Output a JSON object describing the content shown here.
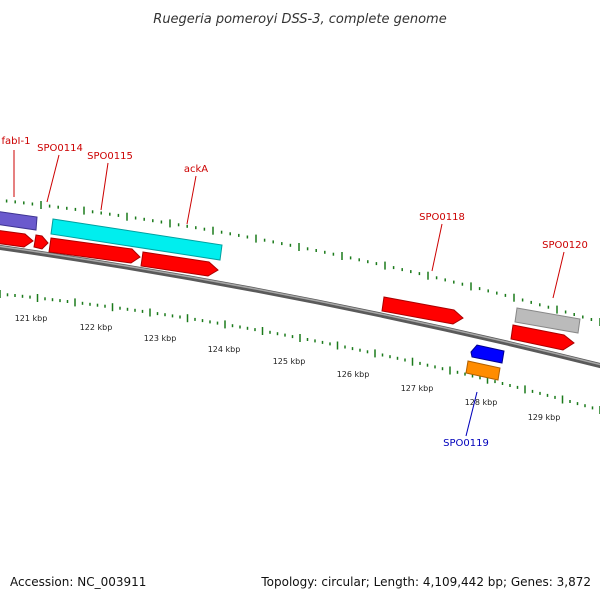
{
  "title": "Ruegeria pomeroyi DSS-3, complete genome",
  "footer": {
    "accession": "Accession: NC_003911",
    "summary": "Topology: circular; Length: 4,109,442 bp; Genes: 3,872"
  },
  "colors": {
    "backbone": "#808080",
    "tick": "#1a7a1a",
    "label_fwd": "#cc0000",
    "label_rev": "#0000bb",
    "fwd_gene": "#ff0000",
    "fabI": "#6a5acd",
    "cyan_block": "#00eeee",
    "grey_block": "#bbbbbb",
    "rev_blue": "#0000ff",
    "rev_orange": "#ff8c00"
  },
  "scale_labels": [
    "121 kbp",
    "122 kbp",
    "123 kbp",
    "124 kbp",
    "125 kbp",
    "126 kbp",
    "127 kbp",
    "128 kbp",
    "129 kbp"
  ],
  "gene_labels": [
    {
      "id": "fabI-1",
      "text": "fabI-1",
      "strand": "forward"
    },
    {
      "id": "SPO0114",
      "text": "SPO0114",
      "strand": "forward"
    },
    {
      "id": "SPO0115",
      "text": "SPO0115",
      "strand": "forward"
    },
    {
      "id": "ackA",
      "text": "ackA",
      "strand": "forward"
    },
    {
      "id": "SPO0118",
      "text": "SPO0118",
      "strand": "forward"
    },
    {
      "id": "SPO0120",
      "text": "SPO0120",
      "strand": "forward"
    },
    {
      "id": "SPO0119",
      "text": "SPO0119",
      "strand": "reverse"
    }
  ]
}
